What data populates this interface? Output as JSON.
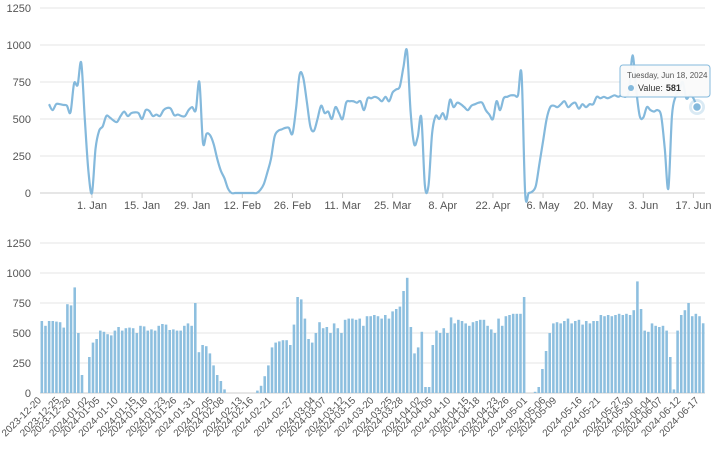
{
  "chart_data": [
    {
      "type": "line",
      "color": "#84b9dc",
      "x": [
        "2023-12-20",
        "2023-12-21",
        "2023-12-22",
        "2023-12-23",
        "2023-12-24",
        "2023-12-25",
        "2023-12-26",
        "2023-12-27",
        "2023-12-28",
        "2023-12-29",
        "2023-12-30",
        "2023-12-31",
        "2024-01-01",
        "2024-01-02",
        "2024-01-03",
        "2024-01-04",
        "2024-01-05",
        "2024-01-06",
        "2024-01-07",
        "2024-01-08",
        "2024-01-09",
        "2024-01-10",
        "2024-01-11",
        "2024-01-12",
        "2024-01-13",
        "2024-01-14",
        "2024-01-15",
        "2024-01-16",
        "2024-01-17",
        "2024-01-18",
        "2024-01-19",
        "2024-01-20",
        "2024-01-21",
        "2024-01-22",
        "2024-01-23",
        "2024-01-24",
        "2024-01-25",
        "2024-01-26",
        "2024-01-27",
        "2024-01-28",
        "2024-01-29",
        "2024-01-30",
        "2024-01-31",
        "2024-02-01",
        "2024-02-02",
        "2024-02-03",
        "2024-02-04",
        "2024-02-05",
        "2024-02-06",
        "2024-02-07",
        "2024-02-08",
        "2024-02-09",
        "2024-02-10",
        "2024-02-11",
        "2024-02-12",
        "2024-02-13",
        "2024-02-14",
        "2024-02-15",
        "2024-02-16",
        "2024-02-17",
        "2024-02-18",
        "2024-02-19",
        "2024-02-20",
        "2024-02-21",
        "2024-02-22",
        "2024-02-23",
        "2024-02-24",
        "2024-02-25",
        "2024-02-26",
        "2024-02-27",
        "2024-02-28",
        "2024-02-29",
        "2024-03-01",
        "2024-03-02",
        "2024-03-03",
        "2024-03-04",
        "2024-03-05",
        "2024-03-06",
        "2024-03-07",
        "2024-03-08",
        "2024-03-09",
        "2024-03-10",
        "2024-03-11",
        "2024-03-12",
        "2024-03-13",
        "2024-03-14",
        "2024-03-15",
        "2024-03-16",
        "2024-03-17",
        "2024-03-18",
        "2024-03-19",
        "2024-03-20",
        "2024-03-21",
        "2024-03-22",
        "2024-03-23",
        "2024-03-24",
        "2024-03-25",
        "2024-03-26",
        "2024-03-27",
        "2024-03-28",
        "2024-03-29",
        "2024-03-30",
        "2024-03-31",
        "2024-04-01",
        "2024-04-02",
        "2024-04-03",
        "2024-04-04",
        "2024-04-05",
        "2024-04-06",
        "2024-04-07",
        "2024-04-08",
        "2024-04-09",
        "2024-04-10",
        "2024-04-11",
        "2024-04-12",
        "2024-04-13",
        "2024-04-14",
        "2024-04-15",
        "2024-04-16",
        "2024-04-17",
        "2024-04-18",
        "2024-04-19",
        "2024-04-20",
        "2024-04-21",
        "2024-04-22",
        "2024-04-23",
        "2024-04-24",
        "2024-04-25",
        "2024-04-26",
        "2024-04-27",
        "2024-04-28",
        "2024-04-29",
        "2024-04-30",
        "2024-05-01",
        "2024-05-02",
        "2024-05-03",
        "2024-05-04",
        "2024-05-05",
        "2024-05-06",
        "2024-05-07",
        "2024-05-08",
        "2024-05-09",
        "2024-05-10",
        "2024-05-11",
        "2024-05-12",
        "2024-05-13",
        "2024-05-14",
        "2024-05-15",
        "2024-05-16",
        "2024-05-17",
        "2024-05-18",
        "2024-05-19",
        "2024-05-20",
        "2024-05-21",
        "2024-05-22",
        "2024-05-23",
        "2024-05-24",
        "2024-05-25",
        "2024-05-26",
        "2024-05-27",
        "2024-05-28",
        "2024-05-29",
        "2024-05-30",
        "2024-05-31",
        "2024-06-01",
        "2024-06-02",
        "2024-06-03",
        "2024-06-04",
        "2024-06-05",
        "2024-06-06",
        "2024-06-07",
        "2024-06-08",
        "2024-06-09",
        "2024-06-10",
        "2024-06-11",
        "2024-06-12",
        "2024-06-13",
        "2024-06-14",
        "2024-06-15",
        "2024-06-16",
        "2024-06-17",
        "2024-06-18"
      ],
      "values": [
        600,
        560,
        600,
        600,
        595,
        590,
        545,
        740,
        730,
        880,
        500,
        150,
        0,
        300,
        420,
        450,
        520,
        510,
        490,
        480,
        520,
        550,
        520,
        540,
        545,
        540,
        500,
        560,
        555,
        520,
        530,
        520,
        560,
        575,
        570,
        525,
        530,
        520,
        520,
        560,
        580,
        560,
        750,
        340,
        400,
        390,
        330,
        230,
        150,
        100,
        30,
        0,
        0,
        0,
        0,
        0,
        0,
        0,
        0,
        20,
        60,
        140,
        230,
        380,
        420,
        430,
        440,
        440,
        400,
        570,
        800,
        780,
        620,
        450,
        420,
        500,
        590,
        540,
        550,
        500,
        580,
        540,
        500,
        610,
        620,
        620,
        610,
        620,
        560,
        640,
        640,
        650,
        640,
        620,
        650,
        620,
        680,
        700,
        720,
        850,
        960,
        550,
        330,
        380,
        510,
        50,
        50,
        400,
        520,
        500,
        540,
        500,
        630,
        580,
        610,
        600,
        580,
        560,
        590,
        600,
        610,
        610,
        560,
        530,
        500,
        620,
        560,
        640,
        650,
        660,
        660,
        660,
        800,
        0,
        0,
        10,
        50,
        200,
        350,
        500,
        580,
        590,
        580,
        600,
        620,
        580,
        600,
        610,
        570,
        600,
        580,
        600,
        600,
        650,
        640,
        650,
        640,
        650,
        660,
        650,
        660,
        650,
        690,
        930,
        700,
        520,
        510,
        580,
        560,
        550,
        560,
        520,
        300,
        30,
        520,
        650,
        690,
        750,
        640,
        660,
        640,
        581
      ],
      "xlim": [
        "2023-12-20",
        "2024-06-18"
      ],
      "xticks": [
        {
          "value": "2024-01-01",
          "label": "1. Jan"
        },
        {
          "value": "2024-01-15",
          "label": "15. Jan"
        },
        {
          "value": "2024-01-29",
          "label": "29. Jan"
        },
        {
          "value": "2024-02-12",
          "label": "12. Feb"
        },
        {
          "value": "2024-02-26",
          "label": "26. Feb"
        },
        {
          "value": "2024-03-11",
          "label": "11. Mar"
        },
        {
          "value": "2024-03-25",
          "label": "25. Mar"
        },
        {
          "value": "2024-04-08",
          "label": "8. Apr"
        },
        {
          "value": "2024-04-22",
          "label": "22. Apr"
        },
        {
          "value": "2024-05-06",
          "label": "6. May"
        },
        {
          "value": "2024-05-20",
          "label": "20. May"
        },
        {
          "value": "2024-06-03",
          "label": "3. Jun"
        },
        {
          "value": "2024-06-17",
          "label": "17. Jun"
        }
      ],
      "ylim": [
        0,
        1250
      ],
      "yticks": [
        0,
        250,
        500,
        750,
        1000,
        1250
      ],
      "grid": true,
      "tooltip": {
        "date": "Tuesday, Jun 18, 2024",
        "label": "Value:"
      }
    },
    {
      "type": "bar",
      "color": "#8dbfdf",
      "categories": [
        "2023-12-20",
        null,
        null,
        null,
        null,
        "2023-12-25",
        null,
        null,
        "2023-12-28",
        null,
        null,
        null,
        null,
        "2024-01-02",
        null,
        null,
        "2024-01-05",
        null,
        null,
        null,
        null,
        "2024-01-10",
        null,
        null,
        null,
        null,
        "2024-01-15",
        null,
        null,
        "2024-01-18",
        null,
        null,
        null,
        null,
        "2024-01-23",
        null,
        null,
        "2024-01-26",
        null,
        null,
        null,
        null,
        "2024-01-31",
        null,
        null,
        null,
        null,
        "2024-02-05",
        null,
        null,
        "2024-02-08",
        null,
        null,
        null,
        null,
        "2024-02-13",
        null,
        null,
        "2024-02-16",
        null,
        null,
        null,
        null,
        "2024-02-21",
        null,
        null,
        null,
        null,
        null,
        "2024-02-27",
        null,
        null,
        null,
        null,
        null,
        "2024-03-04",
        null,
        null,
        "2024-03-07",
        null,
        null,
        null,
        null,
        "2024-03-12",
        null,
        null,
        "2024-03-15",
        null,
        null,
        null,
        null,
        "2024-03-20",
        null,
        null,
        null,
        null,
        "2024-03-25",
        null,
        null,
        "2024-03-28",
        null,
        null,
        null,
        null,
        "2024-04-02",
        null,
        null,
        "2024-04-05",
        null,
        null,
        null,
        null,
        "2024-04-10",
        null,
        null,
        null,
        null,
        "2024-04-15",
        null,
        null,
        "2024-04-18",
        null,
        null,
        null,
        null,
        "2024-04-23",
        null,
        null,
        "2024-04-26",
        null,
        null,
        null,
        null,
        "2024-05-01",
        null,
        null,
        null,
        null,
        "2024-05-06",
        null,
        null,
        "2024-05-09",
        null,
        null,
        null,
        null,
        null,
        null,
        "2024-05-16",
        null,
        null,
        null,
        null,
        "2024-05-21",
        null,
        null,
        null,
        null,
        null,
        "2024-05-27",
        null,
        null,
        "2024-05-30",
        null,
        null,
        null,
        null,
        "2024-06-04",
        null,
        null,
        "2024-06-07",
        null,
        null,
        null,
        null,
        "2024-06-12",
        null,
        null,
        null,
        null,
        "2024-06-17",
        null
      ],
      "values": [
        600,
        560,
        600,
        600,
        595,
        590,
        545,
        740,
        730,
        880,
        500,
        150,
        0,
        300,
        420,
        450,
        520,
        510,
        490,
        480,
        520,
        550,
        520,
        540,
        545,
        540,
        500,
        560,
        555,
        520,
        530,
        520,
        560,
        575,
        570,
        525,
        530,
        520,
        520,
        560,
        580,
        560,
        750,
        340,
        400,
        390,
        330,
        230,
        150,
        100,
        30,
        0,
        0,
        0,
        0,
        0,
        0,
        0,
        0,
        20,
        60,
        140,
        230,
        380,
        420,
        430,
        440,
        440,
        400,
        570,
        800,
        780,
        620,
        450,
        420,
        500,
        590,
        540,
        550,
        500,
        580,
        540,
        500,
        610,
        620,
        620,
        610,
        620,
        560,
        640,
        640,
        650,
        640,
        620,
        650,
        620,
        680,
        700,
        720,
        850,
        960,
        550,
        330,
        380,
        510,
        50,
        50,
        400,
        520,
        500,
        540,
        500,
        630,
        580,
        610,
        600,
        580,
        560,
        590,
        600,
        610,
        610,
        560,
        530,
        500,
        620,
        560,
        640,
        650,
        660,
        660,
        660,
        800,
        0,
        0,
        10,
        50,
        200,
        350,
        500,
        580,
        590,
        580,
        600,
        620,
        580,
        600,
        610,
        570,
        600,
        580,
        600,
        600,
        650,
        640,
        650,
        640,
        650,
        660,
        650,
        660,
        650,
        690,
        930,
        700,
        520,
        510,
        580,
        560,
        550,
        560,
        520,
        300,
        30,
        520,
        650,
        690,
        750,
        640,
        660,
        640,
        581
      ],
      "ylim": [
        0,
        1250
      ],
      "yticks": [
        0,
        250,
        500,
        750,
        1000,
        1250
      ],
      "grid": true
    }
  ]
}
